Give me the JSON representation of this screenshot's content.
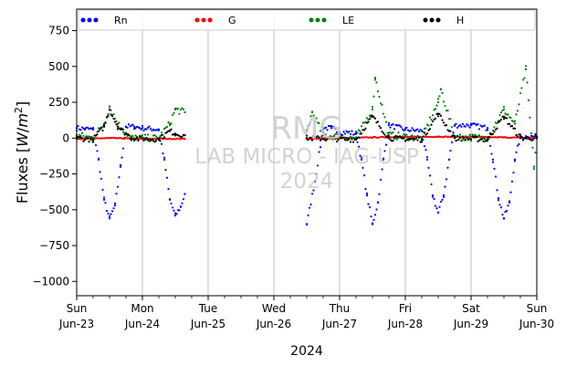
{
  "chart_data": {
    "type": "scatter",
    "title": "",
    "xlabel": "2024",
    "ylabel": "Fluxes [W/m²]",
    "ylabel_parts": {
      "prefix": "Fluxes [",
      "unit_w": "W",
      "unit_slash": "/",
      "unit_m": "m",
      "unit_exp": "2",
      "suffix": "]"
    },
    "ylim": [
      -1100,
      900
    ],
    "xlim": [
      "2024-06-23T00:00",
      "2024-06-30T00:00"
    ],
    "yticks": [
      750,
      500,
      250,
      0,
      -250,
      -500,
      -750,
      -1000
    ],
    "ytick_labels": [
      "750",
      "500",
      "250",
      "0",
      "−250",
      "−500",
      "−750",
      "−1000"
    ],
    "xticks": [
      {
        "day": "Sun",
        "date": "Jun-23"
      },
      {
        "day": "Mon",
        "date": "Jun-24"
      },
      {
        "day": "Tue",
        "date": "Jun-25"
      },
      {
        "day": "Wed",
        "date": "Jun-26"
      },
      {
        "day": "Thu",
        "date": "Jun-27"
      },
      {
        "day": "Fri",
        "date": "Jun-28"
      },
      {
        "day": "Sat",
        "date": "Jun-29"
      },
      {
        "day": "Sun",
        "date": "Jun-30"
      }
    ],
    "grid": "vertical",
    "legend_position": "top",
    "legend": [
      {
        "name": "Rn",
        "color": "#0000ff"
      },
      {
        "name": "G",
        "color": "#ff0000"
      },
      {
        "name": "LE",
        "color": "#008000"
      },
      {
        "name": "H",
        "color": "#000000"
      }
    ],
    "watermark": [
      "RMG",
      "LAB MICRO - IAG-USP",
      "2024"
    ],
    "data_gap": [
      "2024-06-24T19:00",
      "2024-06-26T12:00"
    ],
    "series": [
      {
        "name": "Rn",
        "color": "#0000ff",
        "points": [
          [
            "2024-06-23T00:00",
            70
          ],
          [
            "2024-06-23T03:00",
            65
          ],
          [
            "2024-06-23T06:00",
            60
          ],
          [
            "2024-06-23T08:00",
            -150
          ],
          [
            "2024-06-23T10:00",
            -430
          ],
          [
            "2024-06-23T12:00",
            -560
          ],
          [
            "2024-06-23T14:00",
            -470
          ],
          [
            "2024-06-23T16:00",
            -200
          ],
          [
            "2024-06-23T18:00",
            80
          ],
          [
            "2024-06-23T21:00",
            80
          ],
          [
            "2024-06-24T00:00",
            70
          ],
          [
            "2024-06-24T03:00",
            65
          ],
          [
            "2024-06-24T06:00",
            60
          ],
          [
            "2024-06-24T08:00",
            -150
          ],
          [
            "2024-06-24T10:00",
            -430
          ],
          [
            "2024-06-24T12:00",
            -540
          ],
          [
            "2024-06-24T14:00",
            -480
          ],
          [
            "2024-06-24T15:30",
            -390
          ],
          [
            "2024-06-26T12:00",
            -600
          ],
          [
            "2024-06-26T15:00",
            -300
          ],
          [
            "2024-06-26T18:00",
            70
          ],
          [
            "2024-06-26T21:00",
            70
          ],
          [
            "2024-06-27T00:00",
            40
          ],
          [
            "2024-06-27T03:00",
            40
          ],
          [
            "2024-06-27T06:00",
            30
          ],
          [
            "2024-06-27T08:00",
            -150
          ],
          [
            "2024-06-27T10:00",
            -400
          ],
          [
            "2024-06-27T12:00",
            -600
          ],
          [
            "2024-06-27T14:00",
            -450
          ],
          [
            "2024-06-27T16:00",
            -150
          ],
          [
            "2024-06-27T18:00",
            90
          ],
          [
            "2024-06-28T00:00",
            60
          ],
          [
            "2024-06-28T06:00",
            50
          ],
          [
            "2024-06-28T08:00",
            -150
          ],
          [
            "2024-06-28T10:00",
            -400
          ],
          [
            "2024-06-28T12:00",
            -520
          ],
          [
            "2024-06-28T14:00",
            -400
          ],
          [
            "2024-06-28T16:00",
            -150
          ],
          [
            "2024-06-28T18:00",
            90
          ],
          [
            "2024-06-29T00:00",
            90
          ],
          [
            "2024-06-29T06:00",
            70
          ],
          [
            "2024-06-29T08:00",
            -150
          ],
          [
            "2024-06-29T10:00",
            -420
          ],
          [
            "2024-06-29T12:00",
            -560
          ],
          [
            "2024-06-29T14:00",
            -450
          ],
          [
            "2024-06-29T16:00",
            -150
          ],
          [
            "2024-06-29T18:00",
            10
          ],
          [
            "2024-06-30T00:00",
            10
          ]
        ]
      },
      {
        "name": "G",
        "color": "#ff0000",
        "points": [
          [
            "2024-06-23T00:00",
            -5
          ],
          [
            "2024-06-23T12:00",
            0
          ],
          [
            "2024-06-24T00:00",
            -5
          ],
          [
            "2024-06-24T15:30",
            -5
          ],
          [
            "2024-06-26T12:00",
            -5
          ],
          [
            "2024-06-27T12:00",
            5
          ],
          [
            "2024-06-28T12:00",
            10
          ],
          [
            "2024-06-29T12:00",
            5
          ],
          [
            "2024-06-30T00:00",
            0
          ]
        ]
      },
      {
        "name": "LE",
        "color": "#008000",
        "points": [
          [
            "2024-06-23T00:00",
            20
          ],
          [
            "2024-06-23T06:00",
            0
          ],
          [
            "2024-06-23T10:00",
            100
          ],
          [
            "2024-06-23T12:00",
            220
          ],
          [
            "2024-06-23T15:00",
            100
          ],
          [
            "2024-06-23T20:00",
            0
          ],
          [
            "2024-06-24T06:00",
            0
          ],
          [
            "2024-06-24T10:00",
            100
          ],
          [
            "2024-06-24T12:00",
            200
          ],
          [
            "2024-06-24T15:30",
            180
          ],
          [
            "2024-06-26T12:00",
            50
          ],
          [
            "2024-06-26T14:00",
            180
          ],
          [
            "2024-06-26T18:00",
            20
          ],
          [
            "2024-06-27T06:00",
            0
          ],
          [
            "2024-06-27T12:00",
            200
          ],
          [
            "2024-06-27T13:00",
            420
          ],
          [
            "2024-06-27T18:00",
            20
          ],
          [
            "2024-06-28T06:00",
            0
          ],
          [
            "2024-06-28T12:00",
            250
          ],
          [
            "2024-06-28T13:00",
            340
          ],
          [
            "2024-06-28T18:00",
            10
          ],
          [
            "2024-06-29T06:00",
            0
          ],
          [
            "2024-06-29T12:00",
            200
          ],
          [
            "2024-06-29T16:00",
            100
          ],
          [
            "2024-06-29T20:00",
            480
          ],
          [
            "2024-06-29T23:00",
            -200
          ],
          [
            "2024-06-30T00:00",
            0
          ]
        ]
      },
      {
        "name": "H",
        "color": "#000000",
        "points": [
          [
            "2024-06-23T00:00",
            0
          ],
          [
            "2024-06-23T06:00",
            -10
          ],
          [
            "2024-06-23T10:00",
            80
          ],
          [
            "2024-06-23T12:00",
            200
          ],
          [
            "2024-06-23T15:00",
            80
          ],
          [
            "2024-06-23T20:00",
            0
          ],
          [
            "2024-06-24T06:00",
            -10
          ],
          [
            "2024-06-24T10:00",
            50
          ],
          [
            "2024-06-24T12:00",
            30
          ],
          [
            "2024-06-24T15:30",
            20
          ],
          [
            "2024-06-26T12:00",
            0
          ],
          [
            "2024-06-27T06:00",
            -10
          ],
          [
            "2024-06-27T12:00",
            150
          ],
          [
            "2024-06-27T18:00",
            0
          ],
          [
            "2024-06-28T06:00",
            -10
          ],
          [
            "2024-06-28T12:00",
            170
          ],
          [
            "2024-06-28T18:00",
            0
          ],
          [
            "2024-06-29T06:00",
            -10
          ],
          [
            "2024-06-29T12:00",
            150
          ],
          [
            "2024-06-29T18:00",
            0
          ],
          [
            "2024-06-30T00:00",
            0
          ]
        ]
      }
    ]
  }
}
